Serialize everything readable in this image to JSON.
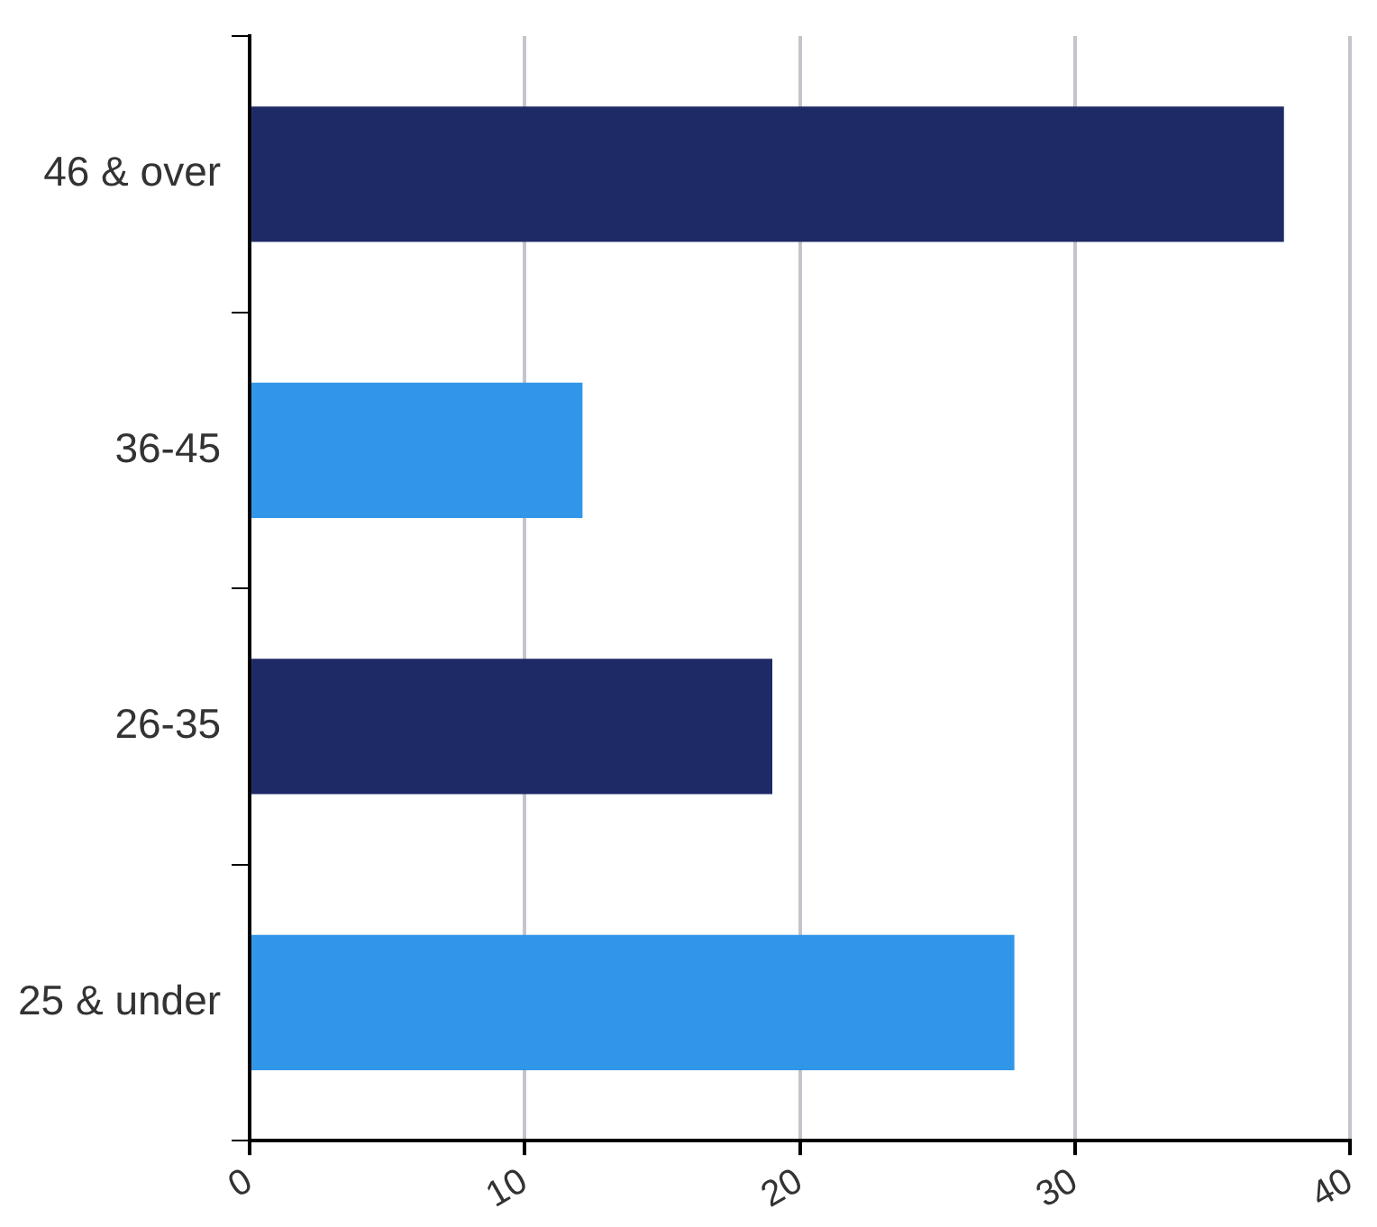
{
  "chart_data": {
    "type": "bar",
    "orientation": "horizontal",
    "categories": [
      "46 & over",
      "36-45",
      "26-35",
      "25 & under"
    ],
    "values": [
      37.6,
      12.1,
      19.0,
      27.8
    ],
    "colors": [
      "#1e2a66",
      "#3196e8",
      "#1e2a66",
      "#3196e8"
    ],
    "xlim": [
      0,
      40
    ],
    "xticks": [
      0,
      10,
      20,
      30,
      40
    ],
    "grid": "x",
    "legend": false
  }
}
